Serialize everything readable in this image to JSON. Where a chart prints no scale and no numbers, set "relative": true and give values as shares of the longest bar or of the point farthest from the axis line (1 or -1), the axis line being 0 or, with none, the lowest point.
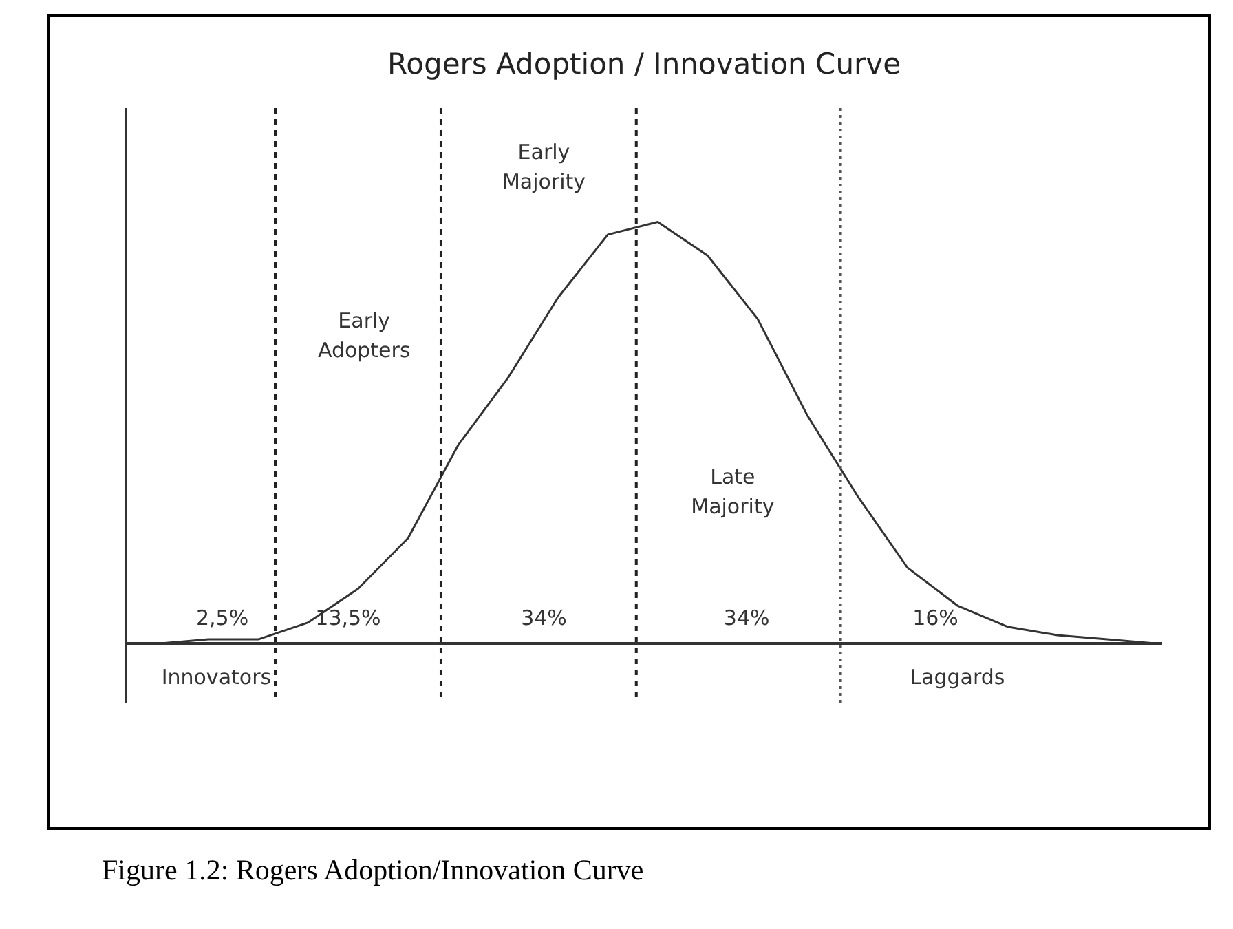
{
  "chart_data": {
    "type": "line",
    "title": "Rogers Adoption / Innovation Curve",
    "relative": true,
    "tick_labels": false,
    "grid": false,
    "marker": "none",
    "line_style": "solid",
    "categories": [
      null,
      null,
      null,
      null,
      null,
      null,
      null,
      null,
      null,
      null,
      null,
      null,
      null,
      null,
      null,
      null,
      null,
      null,
      null,
      null,
      null
    ],
    "series": [
      {
        "color": "#333333",
        "values": [
          0.0,
          0.01,
          0.01,
          0.05,
          0.13,
          0.25,
          0.47,
          0.63,
          0.82,
          0.97,
          1.0,
          0.92,
          0.77,
          0.54,
          0.35,
          0.18,
          0.09,
          0.04,
          0.02,
          0.01,
          0.0
        ]
      }
    ],
    "annotations": [
      "2,5%",
      "13,5%",
      "34%",
      "34%",
      "16%",
      "Innovators",
      "Laggards",
      "Early\nAdopters",
      "Early\nMajority",
      "Late\nMajority",
      "Figure 1.2: Rogers Adoption/Innovation Curve"
    ]
  }
}
